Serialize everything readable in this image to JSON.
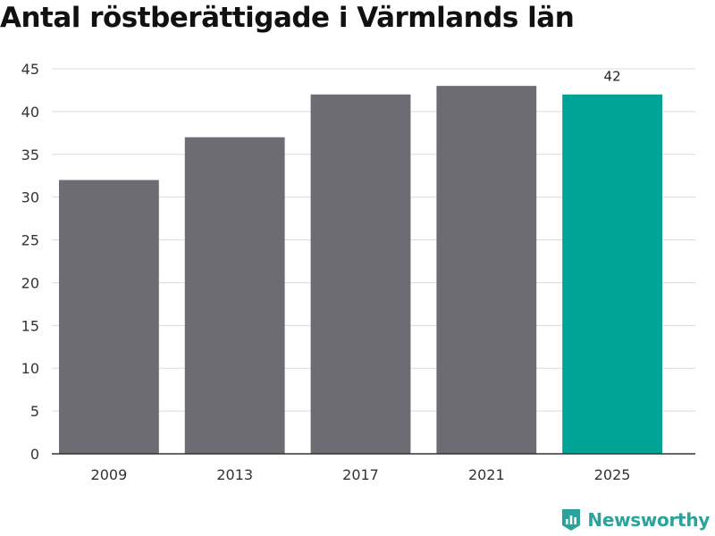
{
  "chart_data": {
    "type": "bar",
    "title": "Antal röstberättigade i Värmlands län",
    "categories": [
      "2009",
      "2013",
      "2017",
      "2021",
      "2025"
    ],
    "values": [
      32,
      37,
      42,
      43,
      42
    ],
    "bar_colors": [
      "#6d6c72",
      "#6d6c72",
      "#6d6c72",
      "#6d6c72",
      "#00a497"
    ],
    "highlighted_category": "2025",
    "data_labels": [
      null,
      null,
      null,
      null,
      "42"
    ],
    "xlabel": "",
    "ylabel": "",
    "ylim": [
      0,
      45
    ],
    "yticks": [
      0,
      5,
      10,
      15,
      20,
      25,
      30,
      35,
      40,
      45
    ],
    "grid": true,
    "legend": "none"
  },
  "branding": {
    "name": "Newsworthy",
    "icon": "newsworthy-logo-icon",
    "color": "#2aa39a"
  }
}
